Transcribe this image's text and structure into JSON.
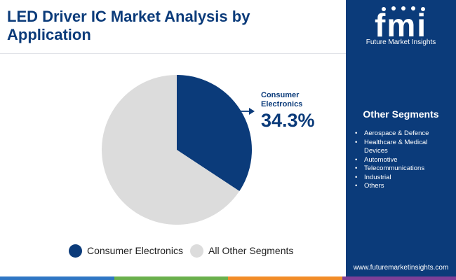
{
  "title": "LED Driver IC Market Analysis by Application",
  "chart_data": {
    "type": "pie",
    "title": "LED Driver IC Market Analysis by Application",
    "slices": [
      {
        "label": "Consumer Electronics",
        "value": 34.3,
        "color": "#0b3b7a"
      },
      {
        "label": "All Other Segments",
        "value": 65.7,
        "color": "#dcdcdc"
      }
    ],
    "callout": {
      "label": "Consumer Electronics",
      "value_text": "34.3%"
    },
    "legend_position": "bottom"
  },
  "legend": [
    {
      "label": "Consumer Electronics",
      "color": "#0b3b7a"
    },
    {
      "label": "All Other Segments",
      "color": "#dcdcdc"
    }
  ],
  "sidebar": {
    "logo_text": "Future Market Insights",
    "logo_icon": "fmi-logo",
    "segments_title": "Other Segments",
    "segments": [
      "Aerospace & Defence",
      "Healthcare & Medical Devices",
      "Automotive",
      "Telecommunications",
      "Industrial",
      "Others"
    ],
    "bullet": "•",
    "website": "www.futuremarketinsights.com"
  },
  "colors": {
    "brand_navy": "#0b3b7a",
    "slice_grey": "#dcdcdc",
    "bottom_bar": [
      "#2f76c4",
      "#6ab04c",
      "#f28c28",
      "#7d3f98"
    ]
  }
}
